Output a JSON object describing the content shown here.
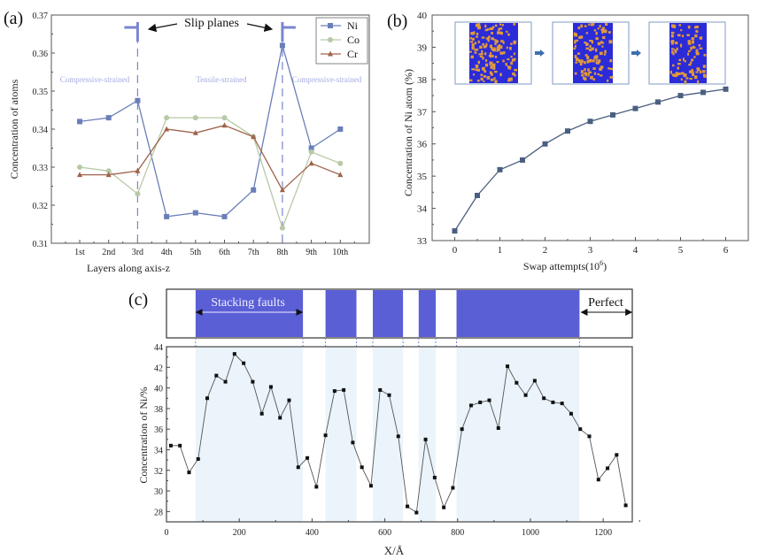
{
  "chart_data": [
    {
      "panel_label": "(a)",
      "type": "line",
      "title": "",
      "xlabel": "Layers along axis-z",
      "ylabel": "Concentration of atoms",
      "categories": [
        "1st",
        "2nd",
        "3rd",
        "4th",
        "5th",
        "6th",
        "7th",
        "8th",
        "9th",
        "10th"
      ],
      "ylim": [
        0.31,
        0.37
      ],
      "yticks": [
        "0.31",
        "0.32",
        "0.33",
        "0.34",
        "0.35",
        "0.36",
        "0.37"
      ],
      "legend_position": "top-right",
      "series": [
        {
          "name": "Ni",
          "color": "#6a7fb8",
          "marker": "square",
          "values": [
            0.342,
            0.343,
            0.3475,
            0.317,
            0.318,
            0.317,
            0.324,
            0.362,
            0.335,
            0.34
          ]
        },
        {
          "name": "Co",
          "color": "#b7c9a6",
          "marker": "circle",
          "values": [
            0.33,
            0.329,
            0.323,
            0.343,
            0.343,
            0.343,
            0.338,
            0.314,
            0.334,
            0.331
          ]
        },
        {
          "name": "Cr",
          "color": "#a0624a",
          "marker": "triangle",
          "values": [
            0.328,
            0.328,
            0.329,
            0.34,
            0.339,
            0.341,
            0.338,
            0.324,
            0.331,
            0.328
          ]
        }
      ],
      "annotations": {
        "slip_planes_label": "Slip planes",
        "slip_plane_positions": [
          "3rd",
          "8th"
        ],
        "region_left": "Compressive-strained",
        "region_middle": "Tensile-strained",
        "region_right": "Compressive-strained"
      }
    },
    {
      "panel_label": "(b)",
      "type": "line",
      "title": "",
      "xlabel": "Swap attempts(10⁶)",
      "xlabel_main": "Swap attempts(10",
      "xlabel_sup": "6",
      "xlabel_end": ")",
      "ylabel": "Concentration of Ni atom (%)",
      "xlim": [
        -0.5,
        6.5
      ],
      "ylim": [
        33,
        40
      ],
      "xticks": [
        "0",
        "1",
        "2",
        "3",
        "4",
        "5",
        "6"
      ],
      "yticks": [
        "33",
        "34",
        "35",
        "36",
        "37",
        "38",
        "39",
        "40"
      ],
      "series": [
        {
          "name": "Ni",
          "color": "#4a5f80",
          "marker": "square",
          "x": [
            0,
            0.5,
            1,
            1.5,
            2,
            2.5,
            3,
            3.5,
            4,
            4.5,
            5,
            5.5,
            6
          ],
          "values": [
            33.3,
            34.4,
            35.2,
            35.5,
            36.0,
            36.4,
            36.7,
            36.9,
            37.1,
            37.3,
            37.5,
            37.6,
            37.7
          ]
        }
      ],
      "inset": {
        "description": "three atomistic snapshots with arrows showing Ni segregation progression",
        "arrow_color": "#3d6fb0",
        "atom_colors": [
          "#2b2bd8",
          "#e09a3a"
        ]
      }
    },
    {
      "panel_label": "(c)",
      "type": "line",
      "title": "",
      "xlabel": "X/Å",
      "ylabel": "Concentration of Ni/%",
      "xlim": [
        0,
        1280
      ],
      "ylim": [
        27,
        44
      ],
      "xticks": [
        "0",
        "200",
        "400",
        "600",
        "800",
        "1000",
        "1200"
      ],
      "yticks": [
        "28",
        "30",
        "32",
        "34",
        "36",
        "38",
        "40",
        "42",
        "44"
      ],
      "series": [
        {
          "name": "Ni",
          "color": "#333333",
          "marker": "square",
          "x": [
            12,
            37,
            62,
            87,
            112,
            137,
            162,
            187,
            212,
            237,
            262,
            287,
            312,
            337,
            362,
            387,
            412,
            437,
            462,
            487,
            512,
            537,
            562,
            587,
            612,
            637,
            662,
            687,
            712,
            737,
            762,
            787,
            812,
            837,
            862,
            887,
            912,
            937,
            962,
            987,
            1012,
            1037,
            1062,
            1087,
            1112,
            1137,
            1162,
            1187,
            1212,
            1237,
            1262
          ],
          "values": [
            34.4,
            34.4,
            31.8,
            33.1,
            39.0,
            41.2,
            40.6,
            43.3,
            42.4,
            40.6,
            37.5,
            40.1,
            37.1,
            38.8,
            32.3,
            33.2,
            30.4,
            35.4,
            39.7,
            39.8,
            34.7,
            32.3,
            30.5,
            39.8,
            39.3,
            35.3,
            28.5,
            27.9,
            35.0,
            31.3,
            28.4,
            30.3,
            36.0,
            38.3,
            38.6,
            38.8,
            36.1,
            42.1,
            40.5,
            39.3,
            40.7,
            39.0,
            38.6,
            38.5,
            37.5,
            36.0,
            35.3,
            31.1,
            32.2,
            33.5,
            28.6
          ]
        }
      ],
      "shaded_regions": [
        [
          80,
          375
        ],
        [
          437,
          522
        ],
        [
          567,
          650
        ],
        [
          693,
          740
        ],
        [
          797,
          1135
        ]
      ],
      "shade_color": "#eaf4fa",
      "strip": {
        "label_faults": "Stacking faults",
        "label_perfect": "Perfect",
        "band_color": "#5b5fd6"
      }
    }
  ]
}
